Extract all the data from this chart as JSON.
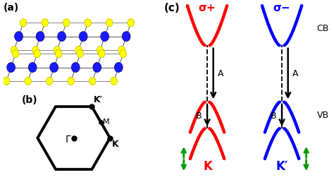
{
  "fig_width": 4.74,
  "fig_height": 2.68,
  "dpi": 100,
  "bg_color": "#ffffff",
  "label_a": "(a)",
  "label_b": "(b)",
  "label_c": "(c)",
  "red_color": "#ff0000",
  "blue_color": "#0000ff",
  "green_color": "#009900",
  "black_color": "#000000",
  "yellow_color": "#ffff00",
  "mo_blue": "#1a1aff",
  "sigma_plus": "σ+",
  "sigma_minus": "σ−",
  "K_label": "K",
  "Kprime_label": "K′",
  "CB_label": "CB",
  "VB_label": "VB",
  "A_label": "A",
  "B_label": "B",
  "Gamma_label": "Γ",
  "M_label": "M"
}
